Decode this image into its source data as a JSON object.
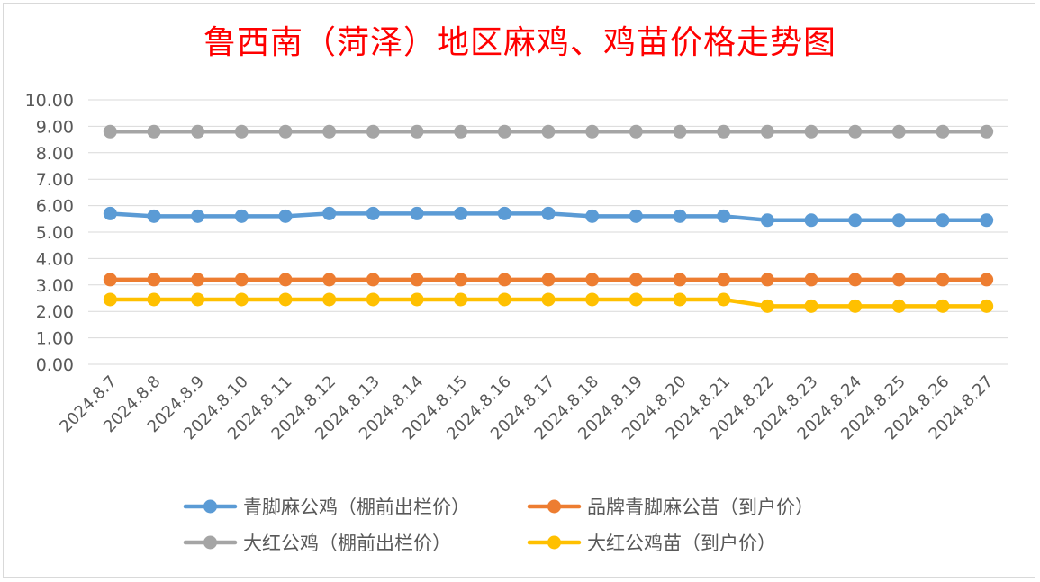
{
  "chart_data": {
    "type": "line",
    "title": "鲁西南（菏泽）地区麻鸡、鸡苗价格走势图",
    "xlabel": "",
    "ylabel": "",
    "ylim": [
      0,
      10
    ],
    "yticks": [
      "0.00",
      "1.00",
      "2.00",
      "3.00",
      "4.00",
      "5.00",
      "6.00",
      "7.00",
      "8.00",
      "9.00",
      "10.00"
    ],
    "grid": true,
    "legend_position": "bottom",
    "categories": [
      "2024.8.7",
      "2024.8.8",
      "2024.8.9",
      "2024.8.10",
      "2024.8.11",
      "2024.8.12",
      "2024.8.13",
      "2024.8.14",
      "2024.8.15",
      "2024.8.16",
      "2024.8.17",
      "2024.8.18",
      "2024.8.19",
      "2024.8.20",
      "2024.8.21",
      "2024.8.22",
      "2024.8.23",
      "2024.8.24",
      "2024.8.25",
      "2024.8.26",
      "2024.8.27"
    ],
    "series": [
      {
        "name": "青脚麻公鸡（棚前出栏价）",
        "color": "#5b9bd5",
        "values": [
          5.7,
          5.6,
          5.6,
          5.6,
          5.6,
          5.7,
          5.7,
          5.7,
          5.7,
          5.7,
          5.7,
          5.6,
          5.6,
          5.6,
          5.6,
          5.45,
          5.45,
          5.45,
          5.45,
          5.45,
          5.45
        ]
      },
      {
        "name": "品牌青脚麻公苗（到户价）",
        "color": "#ed7d31",
        "values": [
          3.2,
          3.2,
          3.2,
          3.2,
          3.2,
          3.2,
          3.2,
          3.2,
          3.2,
          3.2,
          3.2,
          3.2,
          3.2,
          3.2,
          3.2,
          3.2,
          3.2,
          3.2,
          3.2,
          3.2,
          3.2
        ]
      },
      {
        "name": "大红公鸡（棚前出栏价）",
        "color": "#a5a5a5",
        "values": [
          8.8,
          8.8,
          8.8,
          8.8,
          8.8,
          8.8,
          8.8,
          8.8,
          8.8,
          8.8,
          8.8,
          8.8,
          8.8,
          8.8,
          8.8,
          8.8,
          8.8,
          8.8,
          8.8,
          8.8,
          8.8
        ]
      },
      {
        "name": "大红公鸡苗（到户价）",
        "color": "#ffc000",
        "values": [
          2.45,
          2.45,
          2.45,
          2.45,
          2.45,
          2.45,
          2.45,
          2.45,
          2.45,
          2.45,
          2.45,
          2.45,
          2.45,
          2.45,
          2.45,
          2.2,
          2.2,
          2.2,
          2.2,
          2.2,
          2.2
        ]
      }
    ]
  }
}
